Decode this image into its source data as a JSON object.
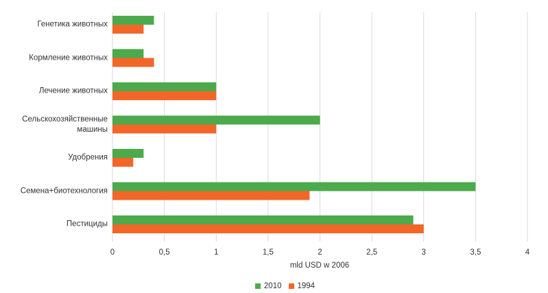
{
  "chart_data": {
    "type": "bar",
    "orientation": "horizontal",
    "categories": [
      "Генетика животных",
      "Кормление животных",
      "Лечение животных",
      "Сельскохозяйственные машины",
      "Удобрения",
      "Семена+биотехнология",
      "Пестициды"
    ],
    "series": [
      {
        "name": "2010",
        "color": "#4caa4c",
        "values": [
          0.4,
          0.3,
          1.0,
          2.0,
          0.3,
          3.5,
          2.9
        ]
      },
      {
        "name": "1994",
        "color": "#f26628",
        "values": [
          0.3,
          0.4,
          1.0,
          1.0,
          0.2,
          1.9,
          3.0
        ]
      }
    ],
    "xlabel": "mld USD w 2006",
    "xlim": [
      0,
      4
    ],
    "xticks": [
      "0",
      "0,5",
      "1",
      "1,5",
      "2",
      "2,5",
      "3",
      "3,5",
      "4"
    ],
    "grid": true,
    "legend": "bottom"
  }
}
